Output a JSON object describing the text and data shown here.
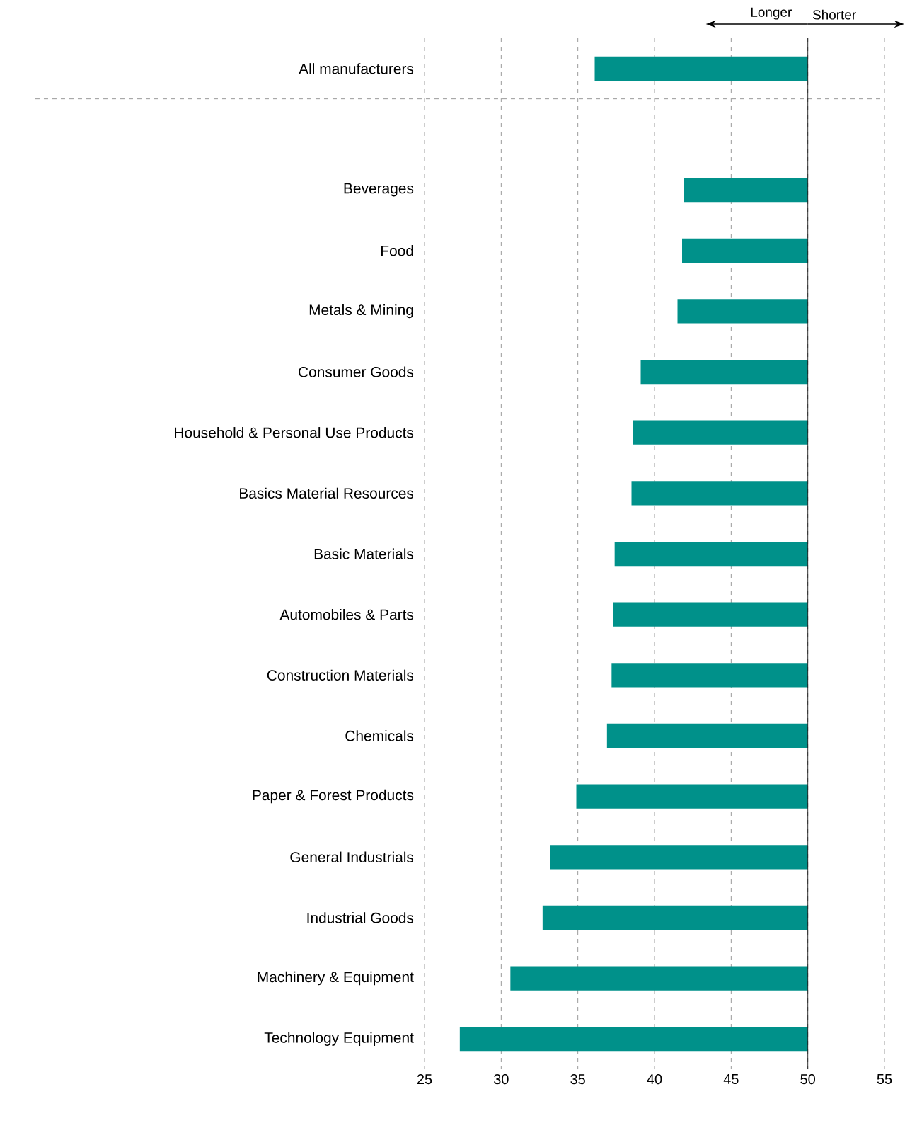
{
  "chart_data": {
    "type": "bar",
    "orientation": "horizontal",
    "categories": [
      "All manufacturers",
      null,
      "Beverages",
      "Food",
      "Metals & Mining",
      "Consumer Goods",
      "Household & Personal Use Products",
      "Basics Material Resources",
      "Basic Materials",
      "Automobiles & Parts",
      "Construction Materials",
      "Chemicals",
      "Paper & Forest Products",
      "General Industrials",
      "Industrial Goods",
      "Machinery & Equipment",
      "Technology Equipment"
    ],
    "base": [
      50,
      null,
      50,
      50,
      50,
      50,
      50,
      50,
      50,
      50,
      50,
      50,
      50,
      50,
      50,
      50,
      50
    ],
    "values": [
      -13.9,
      null,
      -8.1,
      -8.2,
      -8.5,
      -10.9,
      -11.4,
      -11.5,
      -12.6,
      -12.7,
      -12.8,
      -13.1,
      -15.1,
      -16.8,
      -17.3,
      -19.4,
      -22.7
    ],
    "color": "#00918a",
    "xlim": [
      25,
      55
    ],
    "xticks": [
      25,
      30,
      35,
      40,
      45,
      50,
      55
    ],
    "grid": "x",
    "ref_lines": [
      {
        "axis": "x",
        "value": 50,
        "color": "#000000",
        "line_style": "solid"
      }
    ],
    "annotations": [
      "Longer",
      "Shorter"
    ]
  }
}
